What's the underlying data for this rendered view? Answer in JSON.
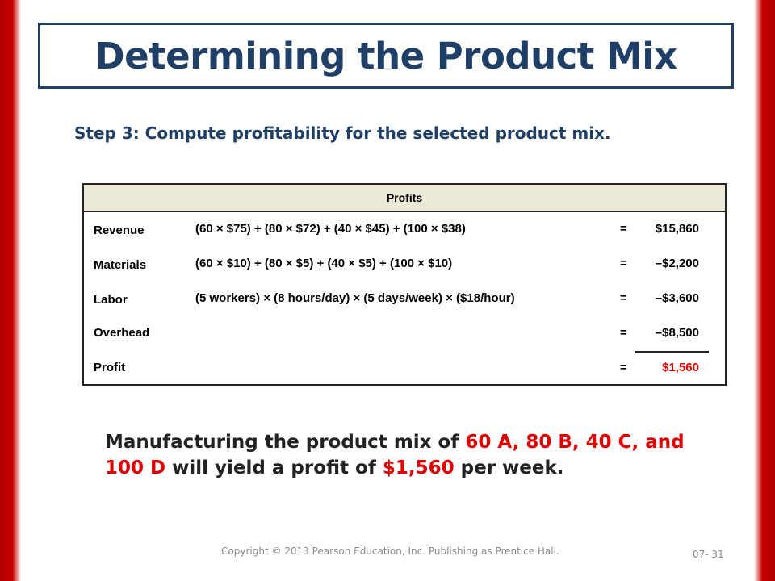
{
  "slide": {
    "title": "Determining the Product Mix",
    "step": "Step 3:  Compute profitability for the selected product mix.",
    "table": {
      "header": "Profits",
      "rows": [
        {
          "label": "Revenue",
          "formula": "(60 × $75) + (80 × $72) + (40 × $45) + (100 × $38)",
          "eq": "=",
          "amount": "$15,860"
        },
        {
          "label": "Materials",
          "formula": "(60 × $10) + (80 × $5) + (40 × $5) + (100 × $10)",
          "eq": "=",
          "amount": "–$2,200"
        },
        {
          "label": "Labor",
          "formula": "(5 workers) × (8 hours/day) × (5 days/week) × ($18/hour)",
          "eq": "=",
          "amount": "–$3,600"
        },
        {
          "label": "Overhead",
          "formula": "",
          "eq": "=",
          "amount": "–$8,500"
        },
        {
          "label": "Profit",
          "formula": "",
          "eq": "=",
          "amount": "$1,560"
        }
      ]
    },
    "conclusion": {
      "part1": "Manufacturing the product mix of ",
      "mix": "60 A, 80 B, 40 C, and 100 D",
      "part2": " will yield a profit of ",
      "profit": "$1,560",
      "part3": " per week."
    },
    "footer": "Copyright © 2013 Pearson Education, Inc. Publishing as Prentice Hall.",
    "page_number": "07- 31",
    "colors": {
      "accent": "#1f3f66",
      "highlight": "#e00000",
      "border": "#c00000"
    }
  }
}
